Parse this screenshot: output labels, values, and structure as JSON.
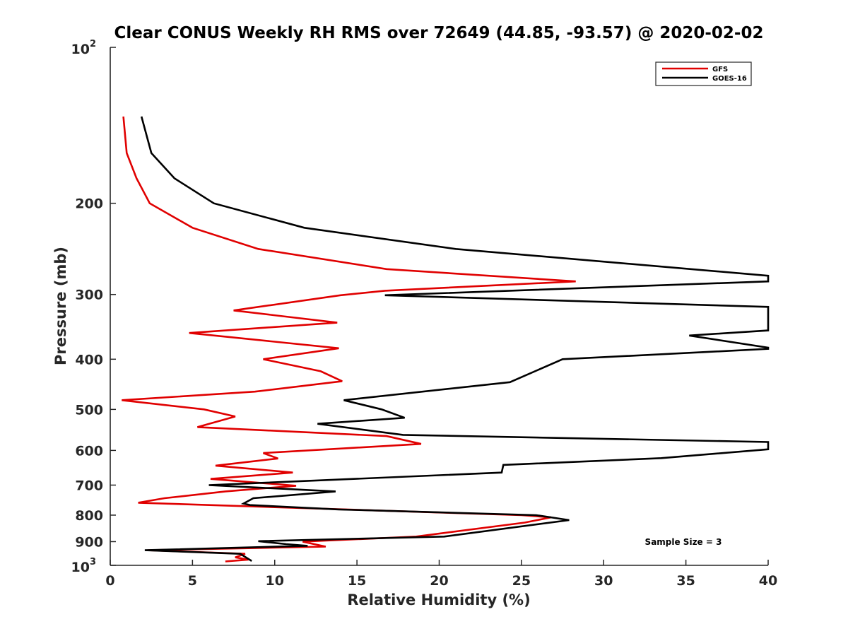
{
  "chart_data": {
    "type": "line",
    "title": "Clear CONUS Weekly RH RMS over 72649 (44.85, -93.57) @ 2020-02-02",
    "xlabel": "Relative Humidity (%)",
    "ylabel": "Pressure (mb)",
    "xlim": [
      0,
      40
    ],
    "ylim": [
      100,
      1000
    ],
    "y_scale": "log",
    "y_reversed": true,
    "x_ticks": [
      "0",
      "5",
      "10",
      "15",
      "20",
      "25",
      "30",
      "35",
      "40"
    ],
    "y_ticks": [
      {
        "value": 100,
        "base": "10",
        "exp": "2"
      },
      {
        "value": 200,
        "label": "200"
      },
      {
        "value": 300,
        "label": "300"
      },
      {
        "value": 400,
        "label": "400"
      },
      {
        "value": 500,
        "label": "500"
      },
      {
        "value": 600,
        "label": "600"
      },
      {
        "value": 700,
        "label": "700"
      },
      {
        "value": 800,
        "label": "800"
      },
      {
        "value": 900,
        "label": "900"
      },
      {
        "value": 1000,
        "base": "10",
        "exp": "3"
      }
    ],
    "legend_position": "top-right",
    "annotation": "Sample Size = 3",
    "series": [
      {
        "name": "GFS",
        "color": "#e00000",
        "points": [
          [
            0.8,
            136
          ],
          [
            1.0,
            160
          ],
          [
            1.6,
            179
          ],
          [
            2.4,
            200
          ],
          [
            5.0,
            223
          ],
          [
            9.0,
            245
          ],
          [
            16.8,
            268
          ],
          [
            28.3,
            283
          ],
          [
            16.7,
            295
          ],
          [
            14.0,
            301
          ],
          [
            7.5,
            322
          ],
          [
            13.8,
            340
          ],
          [
            4.8,
            356
          ],
          [
            13.9,
            381
          ],
          [
            9.3,
            400
          ],
          [
            12.8,
            422
          ],
          [
            14.1,
            441
          ],
          [
            8.8,
            462
          ],
          [
            0.7,
            480
          ],
          [
            5.7,
            500
          ],
          [
            7.6,
            516
          ],
          [
            5.3,
            541
          ],
          [
            16.8,
            563
          ],
          [
            18.9,
            583
          ],
          [
            9.3,
            607
          ],
          [
            10.2,
            622
          ],
          [
            6.4,
            642
          ],
          [
            11.1,
            662
          ],
          [
            6.1,
            681
          ],
          [
            11.3,
            702
          ],
          [
            7.0,
            720
          ],
          [
            3.3,
            742
          ],
          [
            1.7,
            757
          ],
          [
            25.0,
            800
          ],
          [
            26.8,
            808
          ],
          [
            25.2,
            827
          ],
          [
            18.6,
            880
          ],
          [
            11.7,
            900
          ],
          [
            13.1,
            920
          ],
          [
            2.3,
            935
          ],
          [
            8.2,
            950
          ],
          [
            7.6,
            965
          ],
          [
            8.4,
            975
          ],
          [
            7.0,
            983
          ]
        ]
      },
      {
        "name": "GOES-16",
        "color": "#000000",
        "points": [
          [
            1.9,
            136
          ],
          [
            2.5,
            160
          ],
          [
            3.9,
            179
          ],
          [
            6.3,
            200
          ],
          [
            11.8,
            223
          ],
          [
            21.0,
            245
          ],
          [
            40.0,
            276
          ],
          [
            40.0,
            283
          ],
          [
            16.7,
            301
          ],
          [
            40.0,
            317
          ],
          [
            40.0,
            352
          ],
          [
            35.2,
            360
          ],
          [
            40.0,
            380
          ],
          [
            40.0,
            382
          ],
          [
            27.5,
            400
          ],
          [
            24.3,
            443
          ],
          [
            14.2,
            480
          ],
          [
            16.5,
            500
          ],
          [
            17.9,
            519
          ],
          [
            12.6,
            533
          ],
          [
            17.8,
            560
          ],
          [
            40.0,
            578
          ],
          [
            40.0,
            597
          ],
          [
            33.5,
            621
          ],
          [
            23.9,
            640
          ],
          [
            23.8,
            662
          ],
          [
            14.8,
            681
          ],
          [
            6.0,
            700
          ],
          [
            13.7,
            720
          ],
          [
            8.7,
            742
          ],
          [
            8.1,
            760
          ],
          [
            8.5,
            765
          ],
          [
            13.9,
            780
          ],
          [
            25.9,
            800
          ],
          [
            27.9,
            818
          ],
          [
            20.3,
            880
          ],
          [
            9.0,
            898
          ],
          [
            10.7,
            910
          ],
          [
            12.0,
            917
          ],
          [
            2.1,
            935
          ],
          [
            7.9,
            950
          ],
          [
            8.6,
            981
          ]
        ]
      }
    ]
  }
}
